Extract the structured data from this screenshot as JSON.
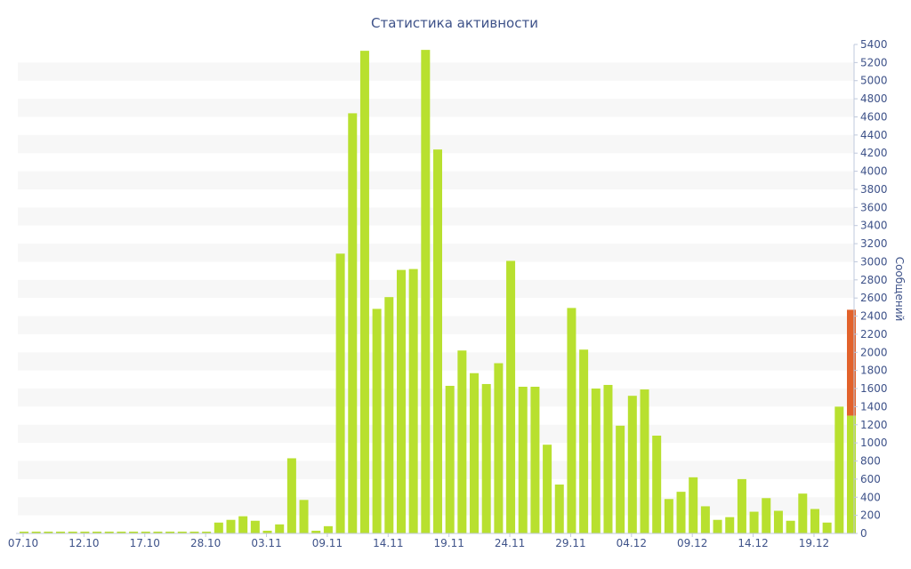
{
  "chart_data": {
    "type": "bar",
    "title": "Статистика активности",
    "ylabel": "Сообщений",
    "ylim": [
      0,
      5400
    ],
    "y_tick_step": 200,
    "grid": "alternating-bands",
    "x_tick_labels": [
      "07.10",
      "12.10",
      "17.10",
      "28.10",
      "03.11",
      "09.11",
      "14.11",
      "19.11",
      "24.11",
      "29.11",
      "04.12",
      "09.12",
      "14.12",
      "19.12"
    ],
    "x_tick_positions": [
      0,
      5,
      10,
      15,
      20,
      25,
      30,
      35,
      40,
      45,
      50,
      55,
      60,
      65
    ],
    "values": [
      20,
      20,
      20,
      20,
      20,
      20,
      20,
      20,
      20,
      20,
      20,
      20,
      20,
      20,
      20,
      20,
      120,
      150,
      190,
      140,
      30,
      100,
      830,
      370,
      30,
      80,
      3090,
      4640,
      5330,
      2480,
      2610,
      2910,
      2920,
      5340,
      4240,
      1630,
      2020,
      1770,
      1650,
      1880,
      3010,
      1620,
      1620,
      980,
      540,
      2490,
      2030,
      1600,
      1640,
      1190,
      1520,
      1590,
      1080,
      380,
      460,
      620,
      300,
      150,
      180,
      600,
      240,
      390,
      250,
      140,
      440,
      270,
      120,
      1400,
      2470
    ],
    "highlight": {
      "index": 68,
      "total": 2470,
      "base": 1300,
      "base_color": "#b8e02f",
      "highlight_color": "#e2622b"
    },
    "colors": {
      "bar": "#b8e02f",
      "band": "#f7f7f7",
      "text": "#3e5289"
    }
  }
}
